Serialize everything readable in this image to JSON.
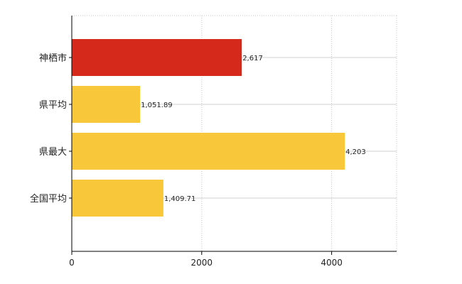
{
  "chart_data": {
    "type": "bar",
    "orientation": "horizontal",
    "categories": [
      "神栖市",
      "県平均",
      "県最大",
      "全国平均"
    ],
    "values": [
      2617,
      1051.89,
      4203,
      1409.71
    ],
    "value_labels": [
      "2,617",
      "1,051.89",
      "4,203",
      "1,409.71"
    ],
    "bar_colors": [
      "#d5291b",
      "#f8c73a",
      "#f8c73a",
      "#f8c73a"
    ],
    "xlim": [
      0,
      5000
    ],
    "x_ticks": [
      0,
      2000,
      4000
    ],
    "x_tick_labels": [
      "0",
      "2000",
      "4000"
    ],
    "grid": true,
    "grid_style": "dotted",
    "legend": "none",
    "title": "",
    "xlabel": "",
    "ylabel": ""
  }
}
